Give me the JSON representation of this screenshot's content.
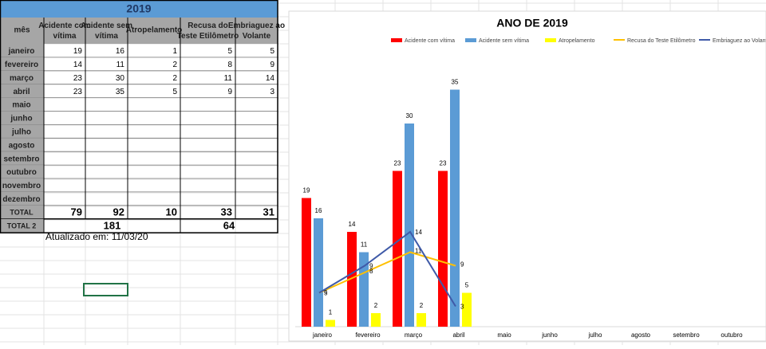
{
  "table": {
    "title": "2019",
    "header": [
      "mês",
      "Acidente com vítima",
      "Acidente sem vítima",
      "Atropelamento",
      "Recusa do Teste Etilômetro",
      "Embriaguez ao Volante"
    ],
    "rows": [
      [
        "janeiro",
        19,
        16,
        1,
        5,
        5
      ],
      [
        "fevereiro",
        14,
        11,
        2,
        8,
        9
      ],
      [
        "março",
        23,
        30,
        2,
        11,
        14
      ],
      [
        "abril",
        23,
        35,
        5,
        9,
        3
      ],
      [
        "maio"
      ],
      [
        "junho"
      ],
      [
        "julho"
      ],
      [
        "agosto"
      ],
      [
        "setembro"
      ],
      [
        "outubro"
      ],
      [
        "novembro"
      ],
      [
        "dezembro"
      ]
    ],
    "total": [
      "TOTAL",
      79,
      92,
      10,
      33,
      31
    ],
    "total2": [
      "TOTAL 2",
      181,
      64
    ],
    "note": "Atualizado em: 11/03/20"
  },
  "chart_data": {
    "type": "bar",
    "title": "ANO DE 2019",
    "categories": [
      "janeiro",
      "fevereiro",
      "março",
      "abril",
      "maio",
      "junho",
      "julho",
      "agosto",
      "setembro",
      "outubro"
    ],
    "ylim": [
      0,
      36
    ],
    "series": [
      {
        "name": "Acidente com vítima",
        "color": "#ff0000",
        "kind": "bar",
        "values": [
          19,
          14,
          23,
          23,
          null,
          null,
          null,
          null,
          null,
          null
        ]
      },
      {
        "name": "Acidente sem vítima",
        "color": "#5b9bd5",
        "kind": "bar",
        "values": [
          16,
          11,
          30,
          35,
          null,
          null,
          null,
          null,
          null,
          null
        ]
      },
      {
        "name": "Atropelamento",
        "color": "#ffff00",
        "kind": "bar",
        "values": [
          1,
          2,
          2,
          5,
          null,
          null,
          null,
          null,
          null,
          null
        ]
      },
      {
        "name": "Recusa do Teste Etilômetro",
        "color": "#ffc000",
        "kind": "line",
        "values": [
          5,
          8,
          11,
          9,
          null,
          null,
          null,
          null,
          null,
          null
        ]
      },
      {
        "name": "Embriaguez ao Volante",
        "color": "#3f5aa8",
        "kind": "line",
        "values": [
          5,
          9,
          14,
          3,
          null,
          null,
          null,
          null,
          null,
          null
        ]
      }
    ]
  }
}
